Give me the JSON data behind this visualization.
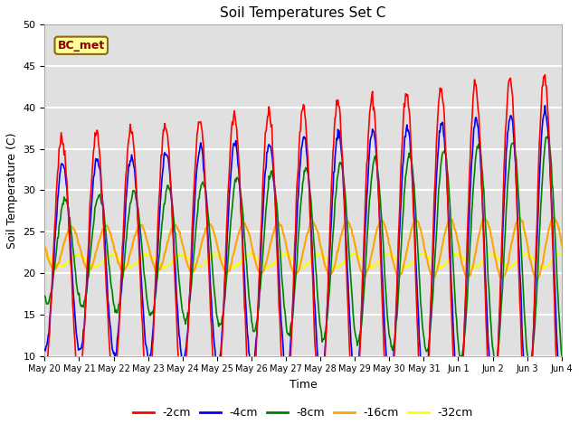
{
  "title": "Soil Temperatures Set C",
  "xlabel": "Time",
  "ylabel": "Soil Temperature (C)",
  "ylim": [
    10,
    50
  ],
  "background_color": "#e0e0e0",
  "grid_color": "white",
  "legend_label": "BC_met",
  "legend_box_color": "#ffff99",
  "legend_box_edge": "#8b6914",
  "series_colors": [
    "red",
    "blue",
    "green",
    "orange",
    "yellow"
  ],
  "series_labels": [
    "-2cm",
    "-4cm",
    "-8cm",
    "-16cm",
    "-32cm"
  ],
  "tick_labels": [
    "May 20",
    "May 21",
    "May 22",
    "May 23",
    "May 24",
    "May 25",
    "May 26",
    "May 27",
    "May 28",
    "May 29",
    "May 30",
    "May 31",
    "Jun 1",
    "Jun 2",
    "Jun 3",
    "Jun 4"
  ],
  "tick_positions": [
    0,
    1,
    2,
    3,
    4,
    5,
    6,
    7,
    8,
    9,
    10,
    11,
    12,
    13,
    14,
    15
  ],
  "yticks": [
    10,
    15,
    20,
    25,
    30,
    35,
    40,
    45,
    50
  ],
  "n_points_per_day": 48,
  "n_days": 16,
  "seed": 7,
  "temp_2cm_mean": 22.0,
  "temp_2cm_amp_base": 14.0,
  "temp_2cm_amp_slope": 0.55,
  "temp_2cm_phase": -1.5708,
  "temp_4cm_mean": 22.0,
  "temp_4cm_amp_base": 11.0,
  "temp_4cm_amp_slope": 0.45,
  "temp_4cm_phase": -1.7,
  "temp_8cm_mean": 22.5,
  "temp_8cm_amp_base": 6.0,
  "temp_8cm_amp_slope": 0.55,
  "temp_8cm_phase": -2.1,
  "temp_16cm_mean": 23.0,
  "temp_16cm_amp_base": 2.5,
  "temp_16cm_amp_slope": 0.08,
  "temp_16cm_phase": -3.3,
  "temp_32cm_mean": 21.5,
  "temp_32cm_amp_base": 0.7,
  "temp_32cm_amp_slope": 0.01,
  "temp_32cm_phase": -4.5
}
